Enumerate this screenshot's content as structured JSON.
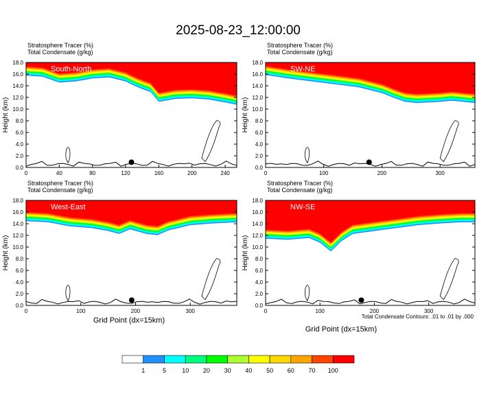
{
  "page": {
    "title": "2025-08-23_12:00:00",
    "footnote": "Total Condensate Contours: .01 to .01 by .000",
    "xlabel": "Grid Point (dx=15km)"
  },
  "colors": {
    "levels": [
      "#ffffff",
      "#1e90ff",
      "#00ffff",
      "#00ff7f",
      "#00ff00",
      "#adff2f",
      "#ffff00",
      "#ffd700",
      "#ffa500",
      "#ff4500",
      "#ff0000"
    ],
    "contour": "#000000",
    "marker": "#000000"
  },
  "colorbar": {
    "labels": [
      "1",
      "5",
      "10",
      "20",
      "30",
      "40",
      "50",
      "60",
      "70",
      "100"
    ]
  },
  "chart_data": [
    {
      "type": "heatmap",
      "name": "South-North",
      "line1": "Stratosphere Tracer   (%)",
      "line2": "Total Condensate   (g/kg)",
      "ylabel": "Height (km)",
      "xlim": [
        0,
        254
      ],
      "ylim": [
        0,
        18
      ],
      "xticks": [
        0,
        40,
        80,
        120,
        160,
        200,
        240
      ],
      "yticks": [
        "0.0",
        "2.0",
        "4.0",
        "6.0",
        "8.0",
        "10.0",
        "12.0",
        "14.0",
        "16.0",
        "18.0"
      ],
      "tropopause_x": [
        0,
        20,
        40,
        60,
        80,
        100,
        120,
        130,
        140,
        150,
        160,
        180,
        200,
        220,
        240,
        254
      ],
      "tropopause_y": [
        15.5,
        15.3,
        14.3,
        14.5,
        15.0,
        15.2,
        14.5,
        13.8,
        13.2,
        12.7,
        11.0,
        11.5,
        11.6,
        11.4,
        10.9,
        10.5
      ],
      "marker_x": 127
    },
    {
      "type": "heatmap",
      "name": "SW-NE",
      "line1": "Stratosphere Tracer   (%)",
      "line2": "Total Condensate   (g/kg)",
      "ylabel": "Height (km)",
      "xlim": [
        0,
        360
      ],
      "ylim": [
        0,
        18
      ],
      "xticks": [
        0,
        100,
        200,
        300
      ],
      "yticks": [
        "0.0",
        "2.0",
        "4.0",
        "6.0",
        "8.0",
        "10.0",
        "12.0",
        "14.0",
        "16.0",
        "18.0"
      ],
      "tropopause_x": [
        0,
        40,
        80,
        120,
        160,
        200,
        220,
        240,
        260,
        280,
        300,
        320,
        340,
        360
      ],
      "tropopause_y": [
        15.6,
        15.0,
        14.5,
        14.0,
        13.5,
        12.5,
        11.7,
        11.0,
        10.8,
        10.9,
        11.0,
        11.2,
        11.0,
        10.8
      ],
      "marker_x": 178
    },
    {
      "type": "heatmap",
      "name": "West-East",
      "line1": "Stratosphere Tracer   (%)",
      "line2": "Total Condensate   (g/kg)",
      "ylabel": "Height (km)",
      "xlim": [
        0,
        385
      ],
      "ylim": [
        0,
        18
      ],
      "xticks": [
        0,
        100,
        200,
        300
      ],
      "yticks": [
        "0.0",
        "2.0",
        "4.0",
        "6.0",
        "8.0",
        "10.0",
        "12.0",
        "14.0",
        "16.0",
        "18.0"
      ],
      "tropopause_x": [
        0,
        40,
        80,
        120,
        150,
        170,
        190,
        220,
        240,
        260,
        300,
        340,
        385
      ],
      "tropopause_y": [
        14.2,
        14.0,
        13.3,
        13.0,
        12.5,
        12.0,
        12.8,
        12.0,
        11.8,
        12.6,
        13.5,
        13.8,
        14.0
      ],
      "marker_x": 193
    },
    {
      "type": "heatmap",
      "name": "NW-SE",
      "line1": "Stratosphere Tracer   (%)",
      "line2": "Total Condensate   (g/kg)",
      "ylabel": "Height (km)",
      "xlim": [
        0,
        385
      ],
      "ylim": [
        0,
        18
      ],
      "xticks": [
        0,
        100,
        200,
        300
      ],
      "yticks": [
        "0.0",
        "2.0",
        "4.0",
        "6.0",
        "8.0",
        "10.0",
        "12.0",
        "14.0",
        "16.0",
        "18.0"
      ],
      "tropopause_x": [
        0,
        40,
        80,
        100,
        120,
        140,
        160,
        200,
        240,
        280,
        320,
        360,
        385
      ],
      "tropopause_y": [
        11.2,
        11.0,
        11.3,
        10.5,
        9.0,
        10.8,
        12.0,
        12.5,
        13.0,
        13.5,
        13.8,
        14.0,
        14.0
      ],
      "marker_x": 176
    }
  ]
}
